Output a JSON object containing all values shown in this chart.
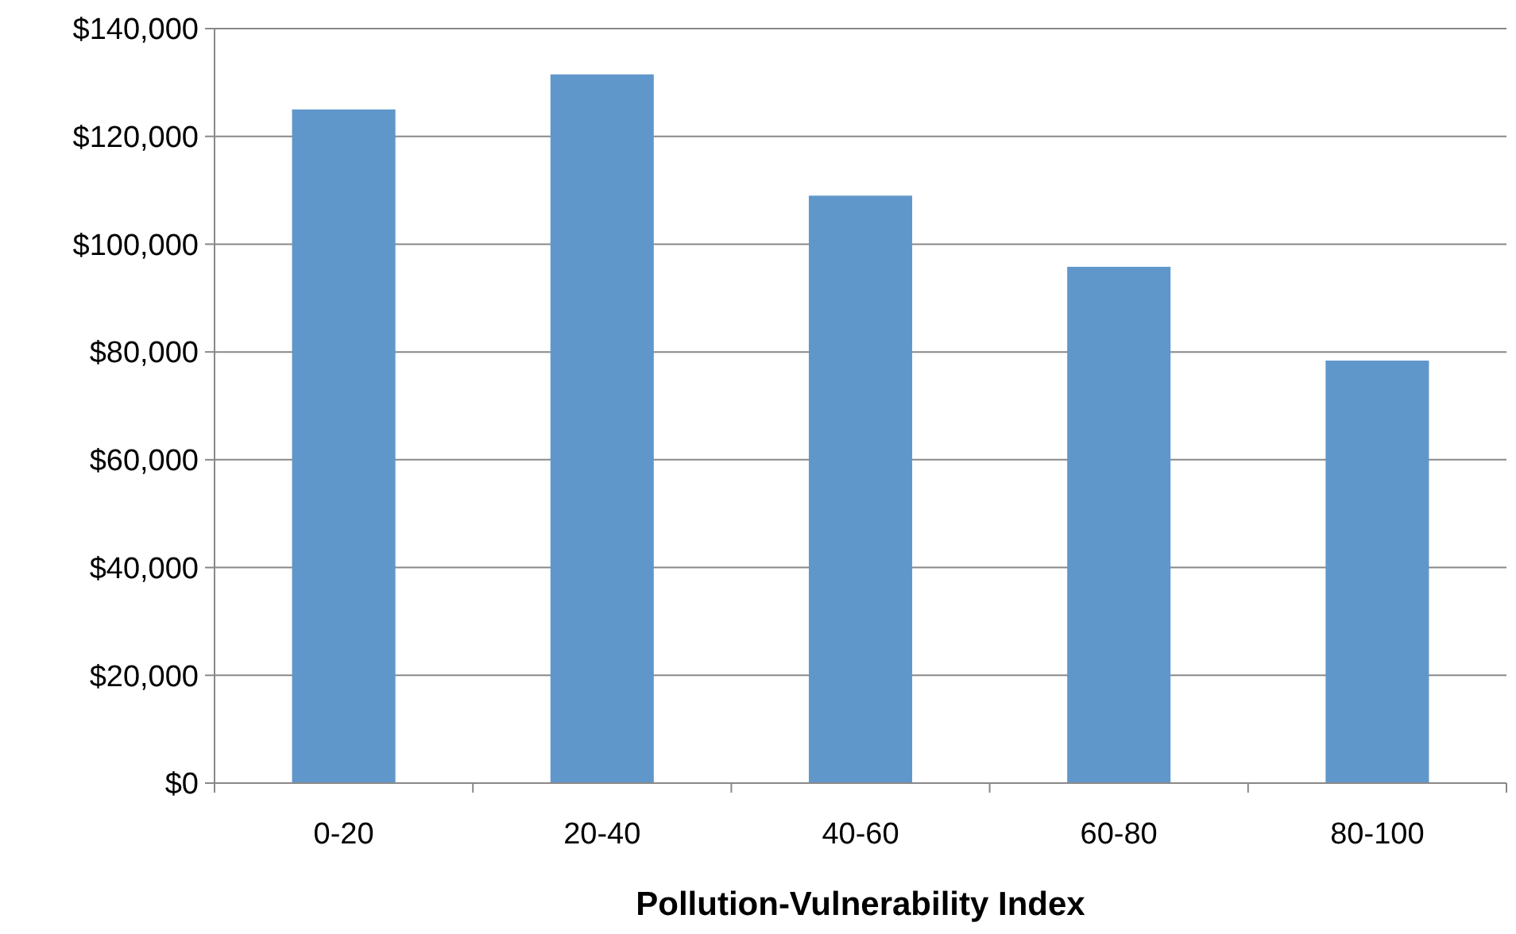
{
  "chart_data": {
    "type": "bar",
    "xlabel": "Pollution-Vulnerability Index",
    "categories": [
      "0-20",
      "20-40",
      "40-60",
      "60-80",
      "80-100"
    ],
    "values": [
      125000,
      131500,
      109000,
      95800,
      78400
    ],
    "color": "#6097cb",
    "ylim": [
      0,
      140000
    ],
    "yticks": [
      {
        "value": 0,
        "label": "$0"
      },
      {
        "value": 20000,
        "label": "$20,000"
      },
      {
        "value": 40000,
        "label": "$40,000"
      },
      {
        "value": 60000,
        "label": "$60,000"
      },
      {
        "value": 80000,
        "label": "$80,000"
      },
      {
        "value": 100000,
        "label": "$100,000"
      },
      {
        "value": 120000,
        "label": "$120,000"
      },
      {
        "value": 140000,
        "label": "$140,000"
      }
    ],
    "grid": "y"
  }
}
